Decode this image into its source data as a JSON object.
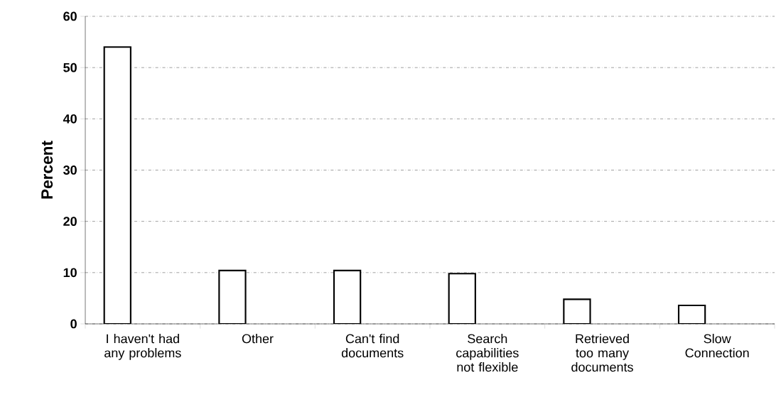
{
  "chart_data": {
    "type": "bar",
    "ylabel": "Percent",
    "categories": [
      "I haven't had any problems",
      "Other",
      "Can't find documents",
      "Search capabilities not flexible",
      "Retrieved too many documents",
      "Slow Connection"
    ],
    "values": [
      54,
      10.4,
      10.4,
      9.8,
      4.8,
      3.6
    ],
    "color": "#ffffff",
    "ylim": [
      0,
      60
    ],
    "yticks": [
      0,
      10,
      20,
      30,
      40,
      50,
      60
    ],
    "grid": "y"
  }
}
